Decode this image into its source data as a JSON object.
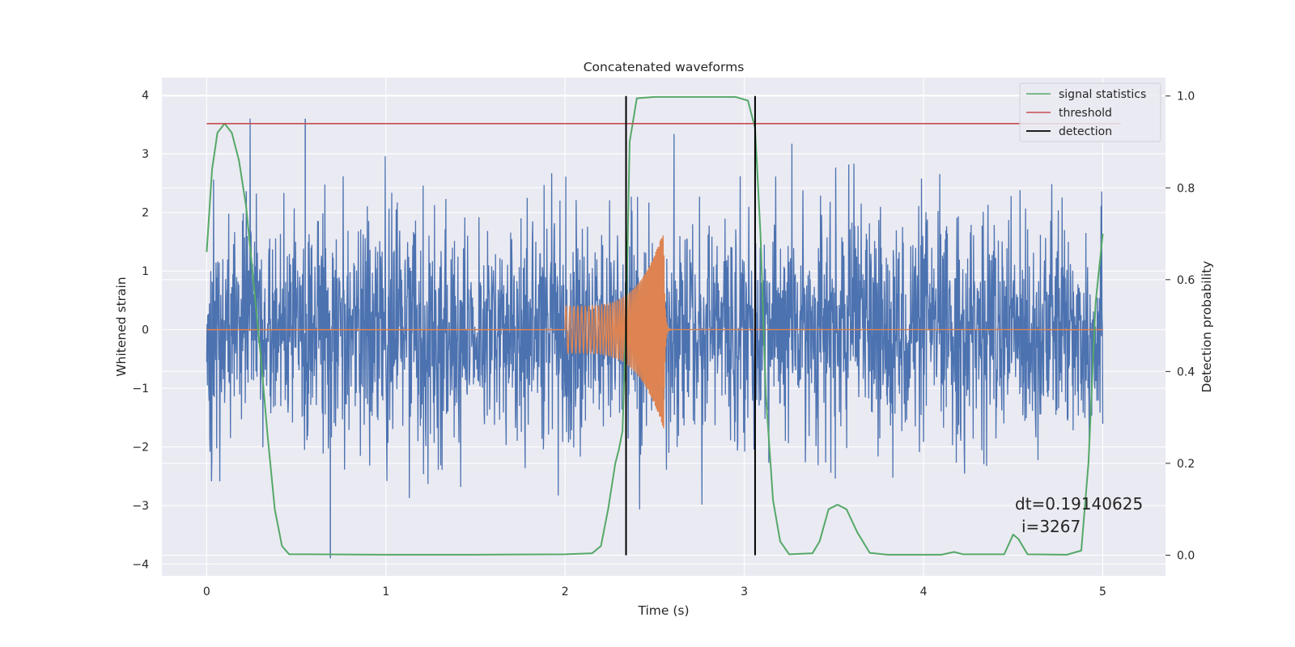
{
  "chart_data": {
    "type": "line",
    "title": "Concatenated waveforms",
    "xlabel": "Time (s)",
    "ylabel_left": "Whitened strain",
    "ylabel_right": "Detection probability",
    "xlim": [
      -0.25,
      5.35
    ],
    "ylim_left": [
      -4.2,
      4.3
    ],
    "ylim_right": [
      -0.045,
      1.04
    ],
    "x_ticks": [
      0,
      1,
      2,
      3,
      4,
      5
    ],
    "y_ticks_left": [
      -4,
      -3,
      -2,
      -1,
      0,
      1,
      2,
      3,
      4
    ],
    "y_ticks_right": [
      0.0,
      0.2,
      0.4,
      0.6,
      0.8,
      1.0
    ],
    "grid": true,
    "legend_position": "top-right",
    "style": {
      "background": "#eaeaf2",
      "grid_color": "#ffffff",
      "noise_color": "#4c72b0",
      "template_color": "#dd8452",
      "stat_color": "#55a868",
      "threshold_color": "#c44e52",
      "detection_color": "#000000"
    },
    "series": [
      {
        "name": "",
        "axis": "left",
        "description": "whitened noisy strain, x 0..5 s, mostly within ±2.5, peaks up to 3.6 and down to -3.9",
        "x_range": [
          0,
          5
        ],
        "typical_amplitude": 1.0,
        "max": 3.6,
        "min": -3.9
      },
      {
        "name": "",
        "axis": "left",
        "description": "chirp template, zero except between 2.0 and 2.55 s, growing oscillation",
        "x_range": [
          0,
          5
        ],
        "chirp_start": 2.0,
        "chirp_end": 2.55,
        "amplitude_start": 0.4,
        "amplitude_end": 1.7
      },
      {
        "name": "signal statistics",
        "axis": "right",
        "points": [
          [
            0.0,
            0.66
          ],
          [
            0.03,
            0.84
          ],
          [
            0.06,
            0.92
          ],
          [
            0.1,
            0.94
          ],
          [
            0.14,
            0.92
          ],
          [
            0.18,
            0.86
          ],
          [
            0.22,
            0.76
          ],
          [
            0.26,
            0.6
          ],
          [
            0.3,
            0.44
          ],
          [
            0.34,
            0.26
          ],
          [
            0.38,
            0.1
          ],
          [
            0.42,
            0.02
          ],
          [
            0.46,
            0.002
          ],
          [
            1.0,
            0.001
          ],
          [
            1.5,
            0.001
          ],
          [
            2.0,
            0.002
          ],
          [
            2.15,
            0.004
          ],
          [
            2.2,
            0.02
          ],
          [
            2.24,
            0.1
          ],
          [
            2.28,
            0.2
          ],
          [
            2.3,
            0.23
          ],
          [
            2.32,
            0.27
          ],
          [
            2.34,
            0.5
          ],
          [
            2.36,
            0.9
          ],
          [
            2.4,
            0.995
          ],
          [
            2.5,
            0.998
          ],
          [
            2.7,
            0.998
          ],
          [
            2.95,
            0.998
          ],
          [
            3.02,
            0.99
          ],
          [
            3.06,
            0.93
          ],
          [
            3.09,
            0.7
          ],
          [
            3.12,
            0.35
          ],
          [
            3.16,
            0.12
          ],
          [
            3.2,
            0.03
          ],
          [
            3.25,
            0.002
          ],
          [
            3.38,
            0.004
          ],
          [
            3.42,
            0.03
          ],
          [
            3.47,
            0.1
          ],
          [
            3.52,
            0.11
          ],
          [
            3.57,
            0.1
          ],
          [
            3.63,
            0.05
          ],
          [
            3.7,
            0.005
          ],
          [
            3.8,
            0.001
          ],
          [
            4.1,
            0.001
          ],
          [
            4.17,
            0.007
          ],
          [
            4.22,
            0.002
          ],
          [
            4.45,
            0.002
          ],
          [
            4.5,
            0.045
          ],
          [
            4.53,
            0.035
          ],
          [
            4.58,
            0.002
          ],
          [
            4.8,
            0.001
          ],
          [
            4.88,
            0.01
          ],
          [
            4.92,
            0.2
          ],
          [
            4.96,
            0.55
          ],
          [
            5.0,
            0.7
          ]
        ]
      },
      {
        "name": "threshold",
        "axis": "right",
        "points": [
          [
            0,
            0.94
          ],
          [
            5.1,
            0.94
          ]
        ]
      },
      {
        "name": "detection",
        "axis": "right",
        "vertical_lines": [
          2.34,
          3.06
        ],
        "y_extent": [
          0.0,
          1.0
        ]
      }
    ],
    "annotations": [
      {
        "text": "dt=0.19140625",
        "x": 4.5,
        "y": 0.11
      },
      {
        "text": "i=3267",
        "x": 4.53,
        "y": 0.06
      }
    ]
  }
}
